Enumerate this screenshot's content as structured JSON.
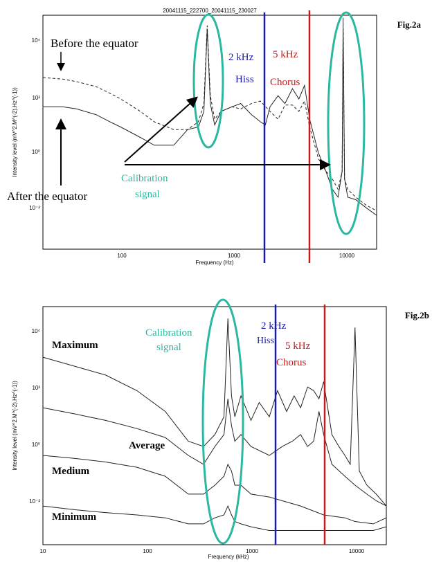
{
  "charts": [
    {
      "figure_label": "Fig.2a",
      "title": "20041115_222700_20041115_230027",
      "xlabel": "Frequency (Hz)",
      "ylabel": "Intensity level (mV^2.M^(-2).Hz^(-1))",
      "annotations": {
        "before": "Before the equator",
        "after": "After the equator",
        "calib_line1": "Calibration",
        "calib_line2": "signal",
        "hiss_freq": "2 kHz",
        "hiss": "Hiss",
        "chorus_freq": "5 kHz",
        "chorus": "Chorus"
      },
      "x_ticks": [
        "100",
        "1000",
        "10000"
      ],
      "y_ticks": [
        "10⁴",
        "10²",
        "10⁰",
        "10⁻²"
      ]
    },
    {
      "figure_label": "Fig.2b",
      "xlabel": "Frequency (kHz)",
      "ylabel": "Intensity level (mV^2.M^(-2).Hz^(-1))",
      "annotations": {
        "maximum": "Maximum",
        "average": "Average",
        "medium": "Medium",
        "minimum": "Minimum",
        "calib_line1": "Calibration",
        "calib_line2": "signal",
        "hiss_freq": "2 kHz",
        "hiss": "Hiss",
        "chorus_freq": "5 kHz",
        "chorus": "Chorus"
      },
      "x_ticks": [
        "10",
        "100",
        "1000",
        "10000"
      ],
      "y_ticks": [
        "10⁴",
        "10²",
        "10⁰",
        "10⁻²"
      ]
    }
  ],
  "colors": {
    "calibration": "#2bb8a0",
    "hiss": "#1a1aa8",
    "chorus": "#c41a1a",
    "curve": "#222222"
  },
  "chart_data": [
    {
      "type": "line",
      "title": "20041115_222700_20041115_230027",
      "xlabel": "Frequency (Hz)",
      "ylabel": "Intensity level (mV^2.M^(-2).Hz^(-1))",
      "x_scale": "log",
      "y_scale": "log",
      "xlim": [
        20,
        20000
      ],
      "ylim": [
        0.0001,
        100000
      ],
      "vertical_markers": [
        {
          "x": 2000,
          "label": "2 kHz",
          "color": "#1a1aa8"
        },
        {
          "x": 5000,
          "label": "5 kHz",
          "color": "#c41a1a"
        }
      ],
      "series": [
        {
          "name": "Before the equator",
          "style": "dashed",
          "x": [
            20,
            30,
            40,
            60,
            80,
            100,
            150,
            200,
            300,
            400,
            500,
            560,
            600,
            640,
            700,
            800,
            1000,
            1200,
            1500,
            1800,
            2200,
            2600,
            3000,
            3500,
            4000,
            4500,
            5000,
            6000,
            7000,
            8000,
            9000,
            9800,
            10000,
            10300,
            11000,
            13000,
            16000,
            20000
          ],
          "y": [
            400,
            350,
            280,
            180,
            100,
            60,
            20,
            8,
            4,
            4,
            8,
            40,
            40000,
            80,
            10,
            20,
            30,
            25,
            40,
            50,
            20,
            10,
            35,
            35,
            20,
            50,
            5,
            0.3,
            0.1,
            0.05,
            0.02,
            0.1,
            80000,
            0.05,
            0.02,
            0.01,
            0.005,
            0.003
          ]
        },
        {
          "name": "After the equator",
          "style": "solid",
          "x": [
            20,
            30,
            40,
            60,
            80,
            100,
            150,
            200,
            300,
            400,
            500,
            560,
            600,
            640,
            700,
            800,
            1000,
            1200,
            1500,
            1800,
            2000,
            2200,
            2600,
            3000,
            3500,
            4000,
            4500,
            5000,
            6000,
            7000,
            8000,
            9000,
            9800,
            10000,
            10300,
            11000,
            13000,
            16000,
            20000
          ],
          "y": [
            30,
            30,
            25,
            15,
            8,
            5,
            2,
            1,
            1,
            4,
            5,
            20,
            30000,
            40,
            6,
            20,
            30,
            40,
            15,
            8,
            6,
            30,
            80,
            40,
            150,
            60,
            200,
            10,
            0.5,
            0.1,
            0.02,
            0.01,
            0.1,
            30000,
            0.05,
            0.01,
            0.008,
            0.004,
            0.002
          ]
        }
      ]
    },
    {
      "type": "line",
      "xlabel": "Frequency (kHz)",
      "ylabel": "Intensity level (mV^2.M^(-2).Hz^(-1))",
      "x_scale": "log",
      "y_scale": "log",
      "xlim": [
        10,
        20000
      ],
      "ylim": [
        0.001,
        100000
      ],
      "vertical_markers": [
        {
          "x": 2000,
          "label": "2 kHz",
          "color": "#1a1aa8"
        },
        {
          "x": 5000,
          "label": "5 kHz",
          "color": "#c41a1a"
        }
      ],
      "series": [
        {
          "name": "Maximum",
          "style": "solid",
          "x": [
            10,
            20,
            40,
            80,
            150,
            250,
            350,
            450,
            550,
            600,
            650,
            700,
            800,
            1000,
            1200,
            1500,
            1800,
            2200,
            2600,
            3000,
            3500,
            4000,
            4500,
            5000,
            6000,
            7000,
            8000,
            9000,
            10000,
            11000,
            13000,
            16000,
            20000
          ],
          "y": [
            2000,
            1000,
            500,
            150,
            30,
            3,
            2,
            5,
            20,
            40000,
            100,
            20,
            100,
            15,
            60,
            20,
            150,
            30,
            100,
            40,
            200,
            150,
            80,
            300,
            5,
            2,
            1,
            0.5,
            20000,
            0.3,
            0.1,
            0.05,
            0.02
          ]
        },
        {
          "name": "Average",
          "style": "solid",
          "x": [
            10,
            20,
            40,
            80,
            150,
            250,
            350,
            450,
            550,
            600,
            650,
            700,
            800,
            1000,
            1500,
            2000,
            2500,
            3000,
            3500,
            4000,
            4500,
            5000,
            6000,
            8000,
            10000,
            13000,
            16000,
            20000
          ],
          "y": [
            40,
            25,
            15,
            8,
            4,
            1,
            0.5,
            2,
            5,
            80,
            10,
            3,
            5,
            2,
            1,
            2,
            3,
            5,
            2,
            3,
            30,
            5,
            0.5,
            0.2,
            0.1,
            0.05,
            0.03,
            0.02
          ]
        },
        {
          "name": "Medium",
          "style": "solid",
          "x": [
            10,
            20,
            40,
            80,
            150,
            250,
            350,
            450,
            550,
            600,
            650,
            700,
            800,
            1000,
            1500,
            2000,
            3000,
            5000,
            8000,
            10000,
            15000,
            20000
          ],
          "y": [
            1,
            0.8,
            0.6,
            0.4,
            0.2,
            0.05,
            0.05,
            0.1,
            0.2,
            0.5,
            0.3,
            0.1,
            0.1,
            0.05,
            0.04,
            0.03,
            0.02,
            0.01,
            0.008,
            0.006,
            0.005,
            0.008
          ]
        },
        {
          "name": "Minimum",
          "style": "solid",
          "x": [
            10,
            20,
            40,
            80,
            150,
            250,
            350,
            450,
            550,
            600,
            650,
            700,
            800,
            1000,
            1500,
            2000,
            3000,
            5000,
            8000,
            10000,
            15000,
            20000
          ],
          "y": [
            0.02,
            0.015,
            0.012,
            0.01,
            0.008,
            0.005,
            0.005,
            0.008,
            0.01,
            0.02,
            0.01,
            0.006,
            0.005,
            0.004,
            0.003,
            0.003,
            0.003,
            0.003,
            0.003,
            0.003,
            0.003,
            0.004
          ]
        }
      ]
    }
  ]
}
